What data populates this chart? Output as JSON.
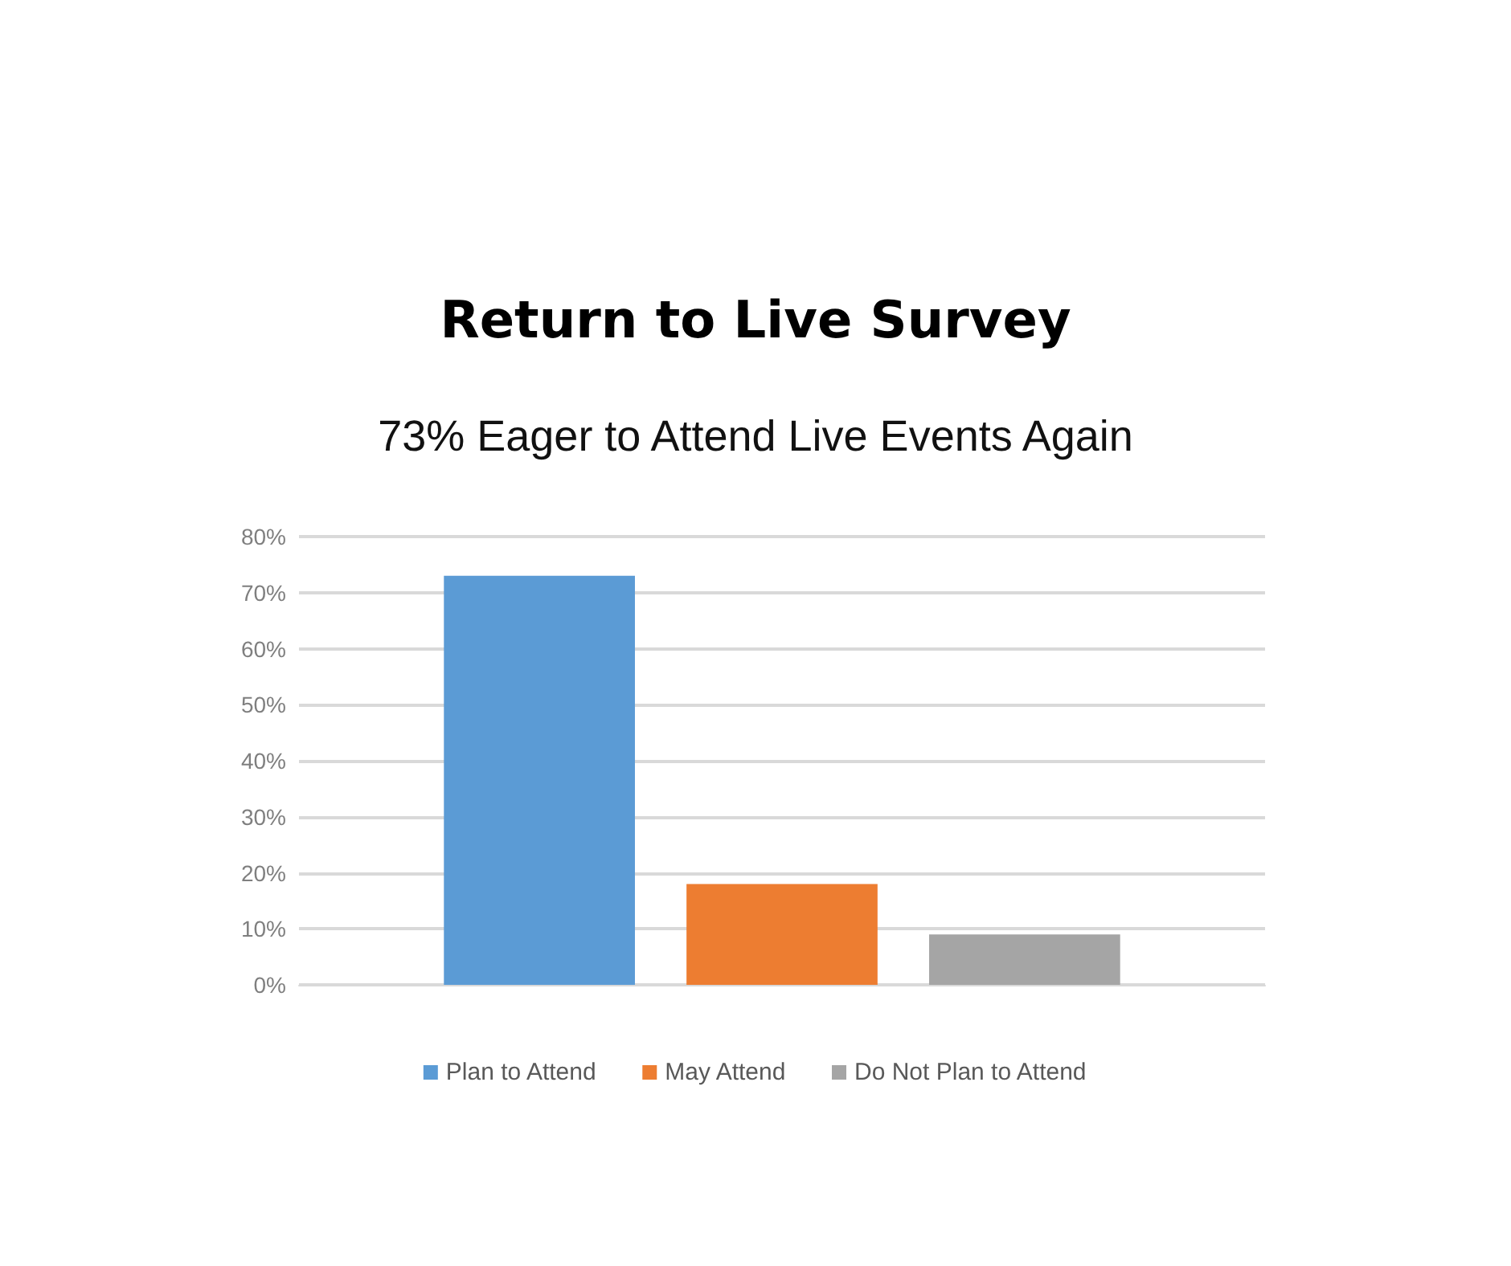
{
  "chart_data": {
    "type": "bar",
    "title": "Return to Live Survey",
    "subtitle": "73% Eager to Attend Live Events Again",
    "categories": [
      null
    ],
    "series": [
      {
        "name": "Plan to Attend",
        "color": "#5b9bd5",
        "values": [
          73
        ]
      },
      {
        "name": "May Attend",
        "color": "#ed7d31",
        "values": [
          18
        ]
      },
      {
        "name": "Do Not Plan to Attend",
        "color": "#a5a5a5",
        "values": [
          9
        ]
      }
    ],
    "ylim": [
      0,
      80
    ],
    "yticks": [
      {
        "value": 0,
        "label": "0%"
      },
      {
        "value": 10,
        "label": "10%"
      },
      {
        "value": 20,
        "label": "20%"
      },
      {
        "value": 30,
        "label": "30%"
      },
      {
        "value": 40,
        "label": "40%"
      },
      {
        "value": 50,
        "label": "50%"
      },
      {
        "value": 60,
        "label": "60%"
      },
      {
        "value": 70,
        "label": "70%"
      },
      {
        "value": 80,
        "label": "80%"
      }
    ],
    "grid": "y",
    "legend": "bottom"
  }
}
